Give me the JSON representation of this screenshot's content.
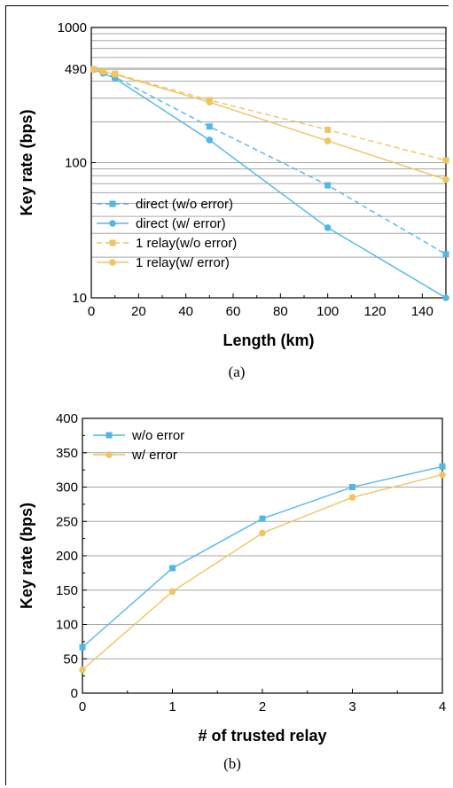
{
  "colors": {
    "blue": "#52b6e6",
    "yellow": "#f0c462",
    "grid": "#a6a6a6"
  },
  "chart_data": [
    {
      "type": "line",
      "caption": "(a)",
      "xlabel": "Length (km)",
      "ylabel": "Key rate (bps)",
      "xlim": [
        0,
        150
      ],
      "ylim": [
        10,
        1000
      ],
      "yscale": "log",
      "grid": true,
      "xticks": [
        0,
        20,
        40,
        60,
        80,
        100,
        120,
        140
      ],
      "yticks": [
        {
          "value": 10,
          "label": "10"
        },
        {
          "value": 100,
          "label": "100"
        },
        {
          "value": 490,
          "label": "490"
        },
        {
          "value": 1000,
          "label": "1000"
        }
      ],
      "legend_position": "bottom-left",
      "series": [
        {
          "name": "direct  (w/o error)",
          "color": "blue",
          "marker": "square",
          "dash": true,
          "x": [
            1,
            5,
            10,
            50,
            100,
            150
          ],
          "y": [
            490,
            465,
            430,
            185,
            68,
            21
          ]
        },
        {
          "name": "direct  (w/   error)",
          "color": "blue",
          "marker": "circle",
          "dash": false,
          "x": [
            1,
            5,
            10,
            50,
            100,
            150
          ],
          "y": [
            488,
            458,
            420,
            147,
            33,
            10
          ]
        },
        {
          "name": "1 relay(w/o error)",
          "color": "yellow",
          "marker": "square",
          "dash": true,
          "x": [
            1,
            5,
            10,
            50,
            100,
            150
          ],
          "y": [
            490,
            475,
            455,
            290,
            175,
            104
          ]
        },
        {
          "name": "1 relay(w/   error)",
          "color": "yellow",
          "marker": "circle",
          "dash": false,
          "x": [
            1,
            5,
            10,
            50,
            100,
            150
          ],
          "y": [
            490,
            472,
            450,
            280,
            145,
            75
          ]
        }
      ]
    },
    {
      "type": "line",
      "caption": "(b)",
      "xlabel": "# of trusted relay",
      "ylabel": "Key rate (bps)",
      "xlim": [
        0,
        4
      ],
      "ylim": [
        0,
        400
      ],
      "grid": true,
      "xticks": [
        0,
        1,
        2,
        3,
        4
      ],
      "yticks": [
        0,
        50,
        100,
        150,
        200,
        250,
        300,
        350,
        400
      ],
      "legend_position": "top-left",
      "series": [
        {
          "name": "w/o error",
          "color": "blue",
          "marker": "square",
          "x": [
            0,
            1,
            2,
            3,
            4
          ],
          "y": [
            67,
            182,
            254,
            300,
            330
          ]
        },
        {
          "name": "w/   error",
          "color": "yellow",
          "marker": "circle",
          "x": [
            0,
            1,
            2,
            3,
            4
          ],
          "y": [
            34,
            148,
            233,
            285,
            318
          ]
        }
      ]
    }
  ]
}
